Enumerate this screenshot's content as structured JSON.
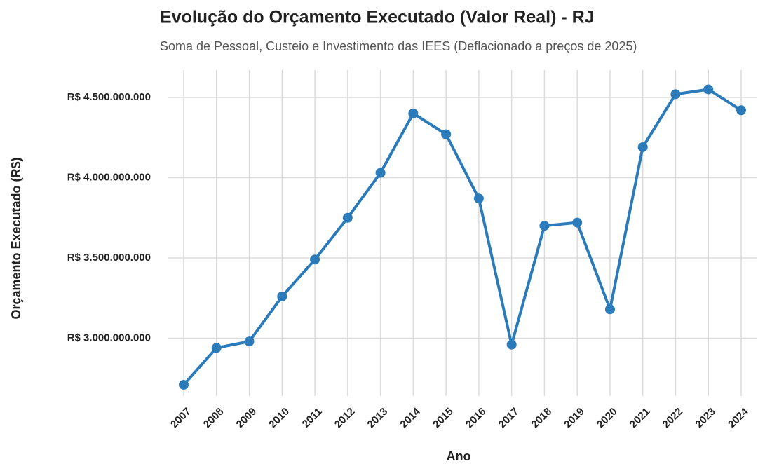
{
  "chart_data": {
    "type": "line",
    "title": "Evolução do Orçamento Executado (Valor Real) - RJ",
    "subtitle": "Soma de Pessoal, Custeio e Investimento das IEES (Deflacionado a preços de 2025)",
    "x_label": "Ano",
    "y_label": "Orçamento Executado (R$)",
    "categories": [
      "2007",
      "2008",
      "2009",
      "2010",
      "2011",
      "2012",
      "2013",
      "2014",
      "2015",
      "2016",
      "2017",
      "2018",
      "2019",
      "2020",
      "2021",
      "2022",
      "2023",
      "2024"
    ],
    "series": [
      {
        "name": "Orçamento Executado",
        "color": "#2b7bba",
        "values": [
          2710000000,
          2940000000,
          2980000000,
          3260000000,
          3490000000,
          3750000000,
          4030000000,
          4400000000,
          4270000000,
          3870000000,
          2960000000,
          3700000000,
          3720000000,
          3180000000,
          4190000000,
          4520000000,
          4550000000,
          4420000000
        ]
      }
    ],
    "ylim": [
      2640000000,
      4670000000
    ],
    "yticks": [
      {
        "value": 3000000000,
        "label": "R$ 3.000.000.000"
      },
      {
        "value": 3500000000,
        "label": "R$ 3.500.000.000"
      },
      {
        "value": 4000000000,
        "label": "R$ 4.000.000.000"
      },
      {
        "value": 4500000000,
        "label": "R$ 4.500.000.000"
      }
    ],
    "grid": true
  }
}
